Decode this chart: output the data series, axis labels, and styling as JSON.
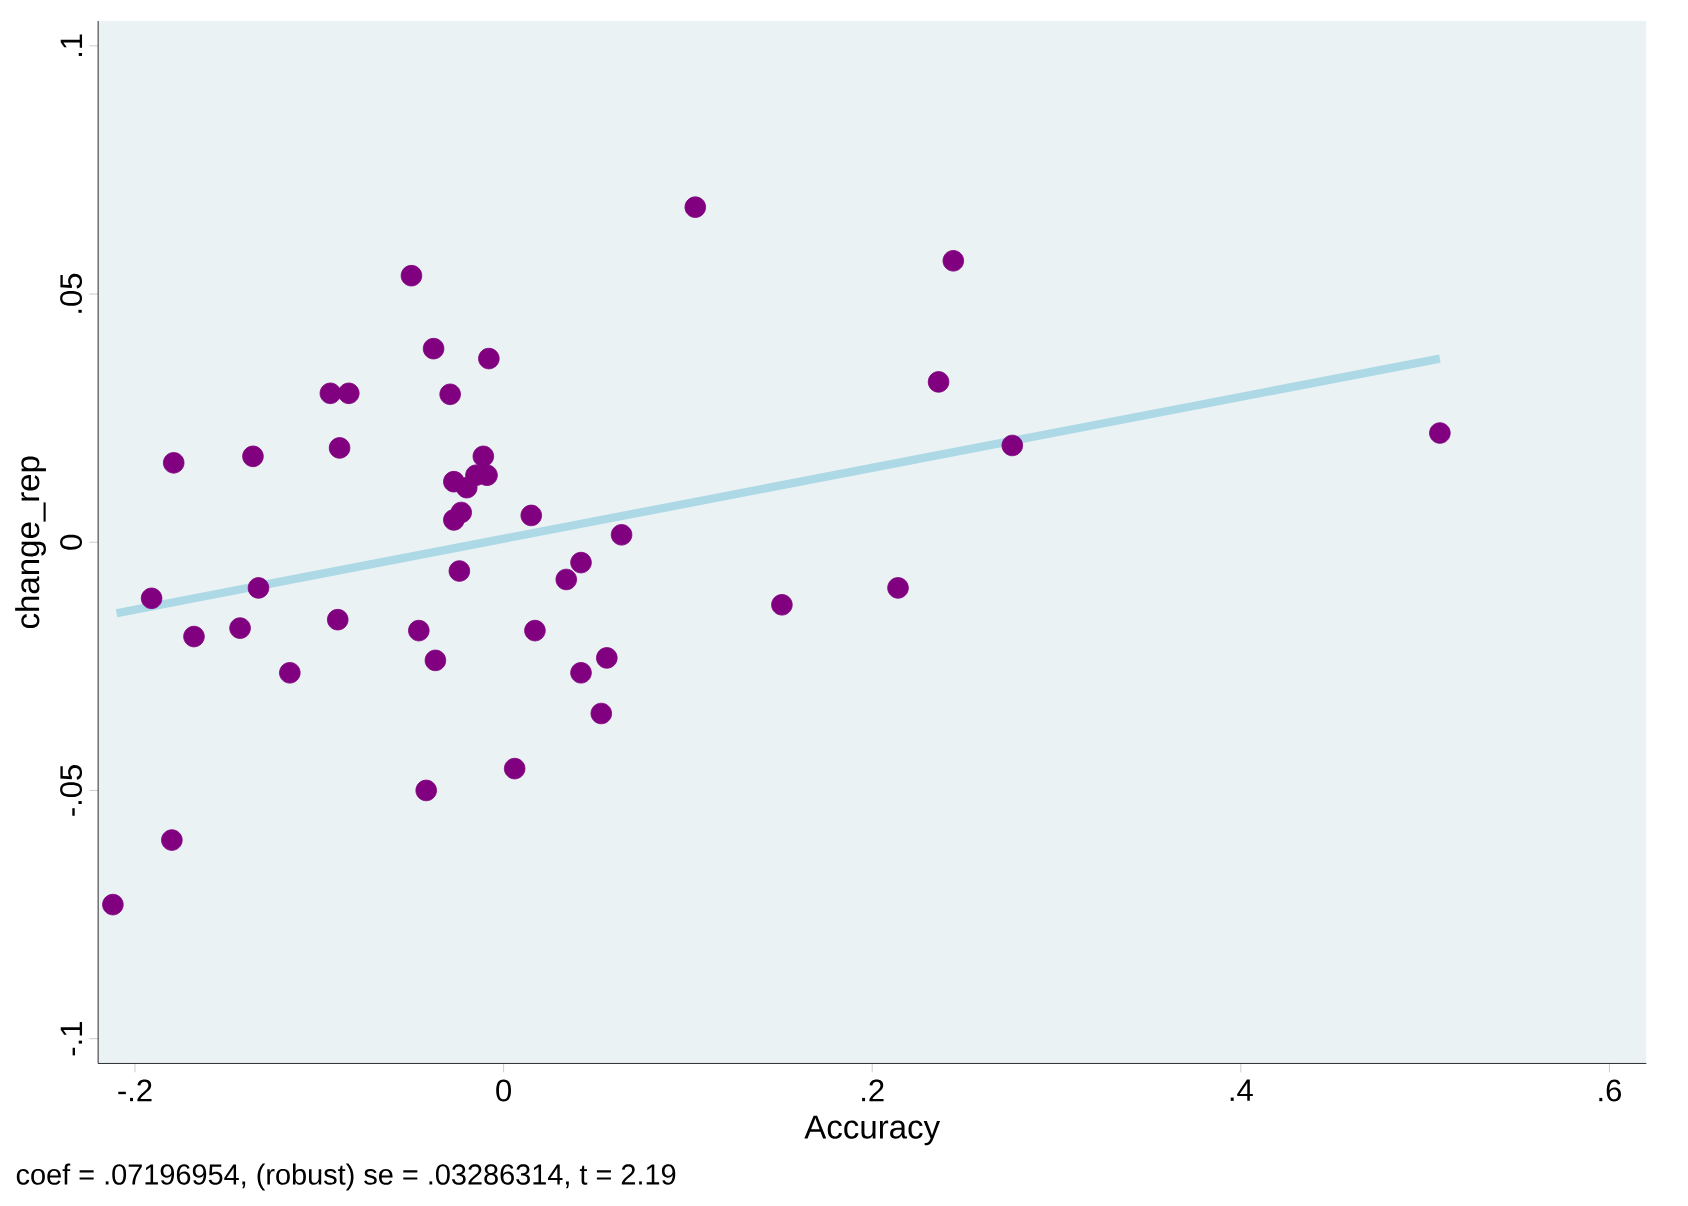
{
  "chart_data": {
    "type": "scatter",
    "xlabel": "Accuracy",
    "ylabel": "change_rep",
    "annotations": [
      "coef = .07196954, (robust) se = .03286314, t = 2.19"
    ],
    "xlim": [
      -0.22,
      0.62
    ],
    "ylim": [
      -0.105,
      0.105
    ],
    "xticks": [
      {
        "value": -0.2,
        "label": "-.2"
      },
      {
        "value": 0,
        "label": "0"
      },
      {
        "value": 0.2,
        "label": ".2"
      },
      {
        "value": 0.4,
        "label": ".4"
      },
      {
        "value": 0.6,
        "label": ".6"
      }
    ],
    "yticks": [
      {
        "value": -0.1,
        "label": "-.1"
      },
      {
        "value": -0.05,
        "label": "-.05"
      },
      {
        "value": 0,
        "label": "0"
      },
      {
        "value": 0.05,
        "label": ".05"
      },
      {
        "value": 0.1,
        "label": ".1"
      }
    ],
    "series": [
      {
        "color": "#800080",
        "marker": "circle",
        "x": [
          -0.212,
          -0.18,
          -0.191,
          -0.179,
          -0.168,
          -0.136,
          -0.133,
          -0.143,
          -0.116,
          -0.094,
          -0.084,
          -0.089,
          -0.09,
          -0.05,
          -0.046,
          -0.038,
          -0.029,
          -0.037,
          -0.042,
          -0.008,
          -0.027,
          -0.011,
          -0.009,
          -0.02,
          -0.015,
          -0.027,
          -0.023,
          -0.024,
          0.015,
          0.017,
          0.006,
          0.034,
          0.042,
          0.064,
          0.042,
          0.056,
          0.053,
          0.104,
          0.244,
          0.236,
          0.276,
          0.508,
          0.151,
          0.214
        ],
        "values": [
          -0.073,
          -0.06,
          -0.0113,
          0.016,
          -0.019,
          0.0173,
          -0.0092,
          -0.0173,
          -0.0263,
          0.03,
          0.03,
          0.019,
          -0.0156,
          0.0537,
          -0.0178,
          0.039,
          0.0298,
          -0.0238,
          -0.05,
          0.037,
          0.0122,
          0.0173,
          0.0135,
          0.011,
          0.0135,
          0.0045,
          0.006,
          -0.0058,
          0.0054,
          -0.0178,
          -0.0456,
          -0.0075,
          -0.0041,
          0.0015,
          -0.0263,
          -0.0233,
          -0.0345,
          0.0675,
          0.0567,
          0.0323,
          0.0195,
          0.022,
          -0.0126,
          -0.0092
        ]
      },
      {
        "type": "line",
        "color": "#add8e6",
        "marker": "none",
        "line_style": "solid",
        "x": [
          -0.21,
          0.508
        ],
        "values": [
          -0.0143,
          0.037
        ]
      }
    ]
  }
}
